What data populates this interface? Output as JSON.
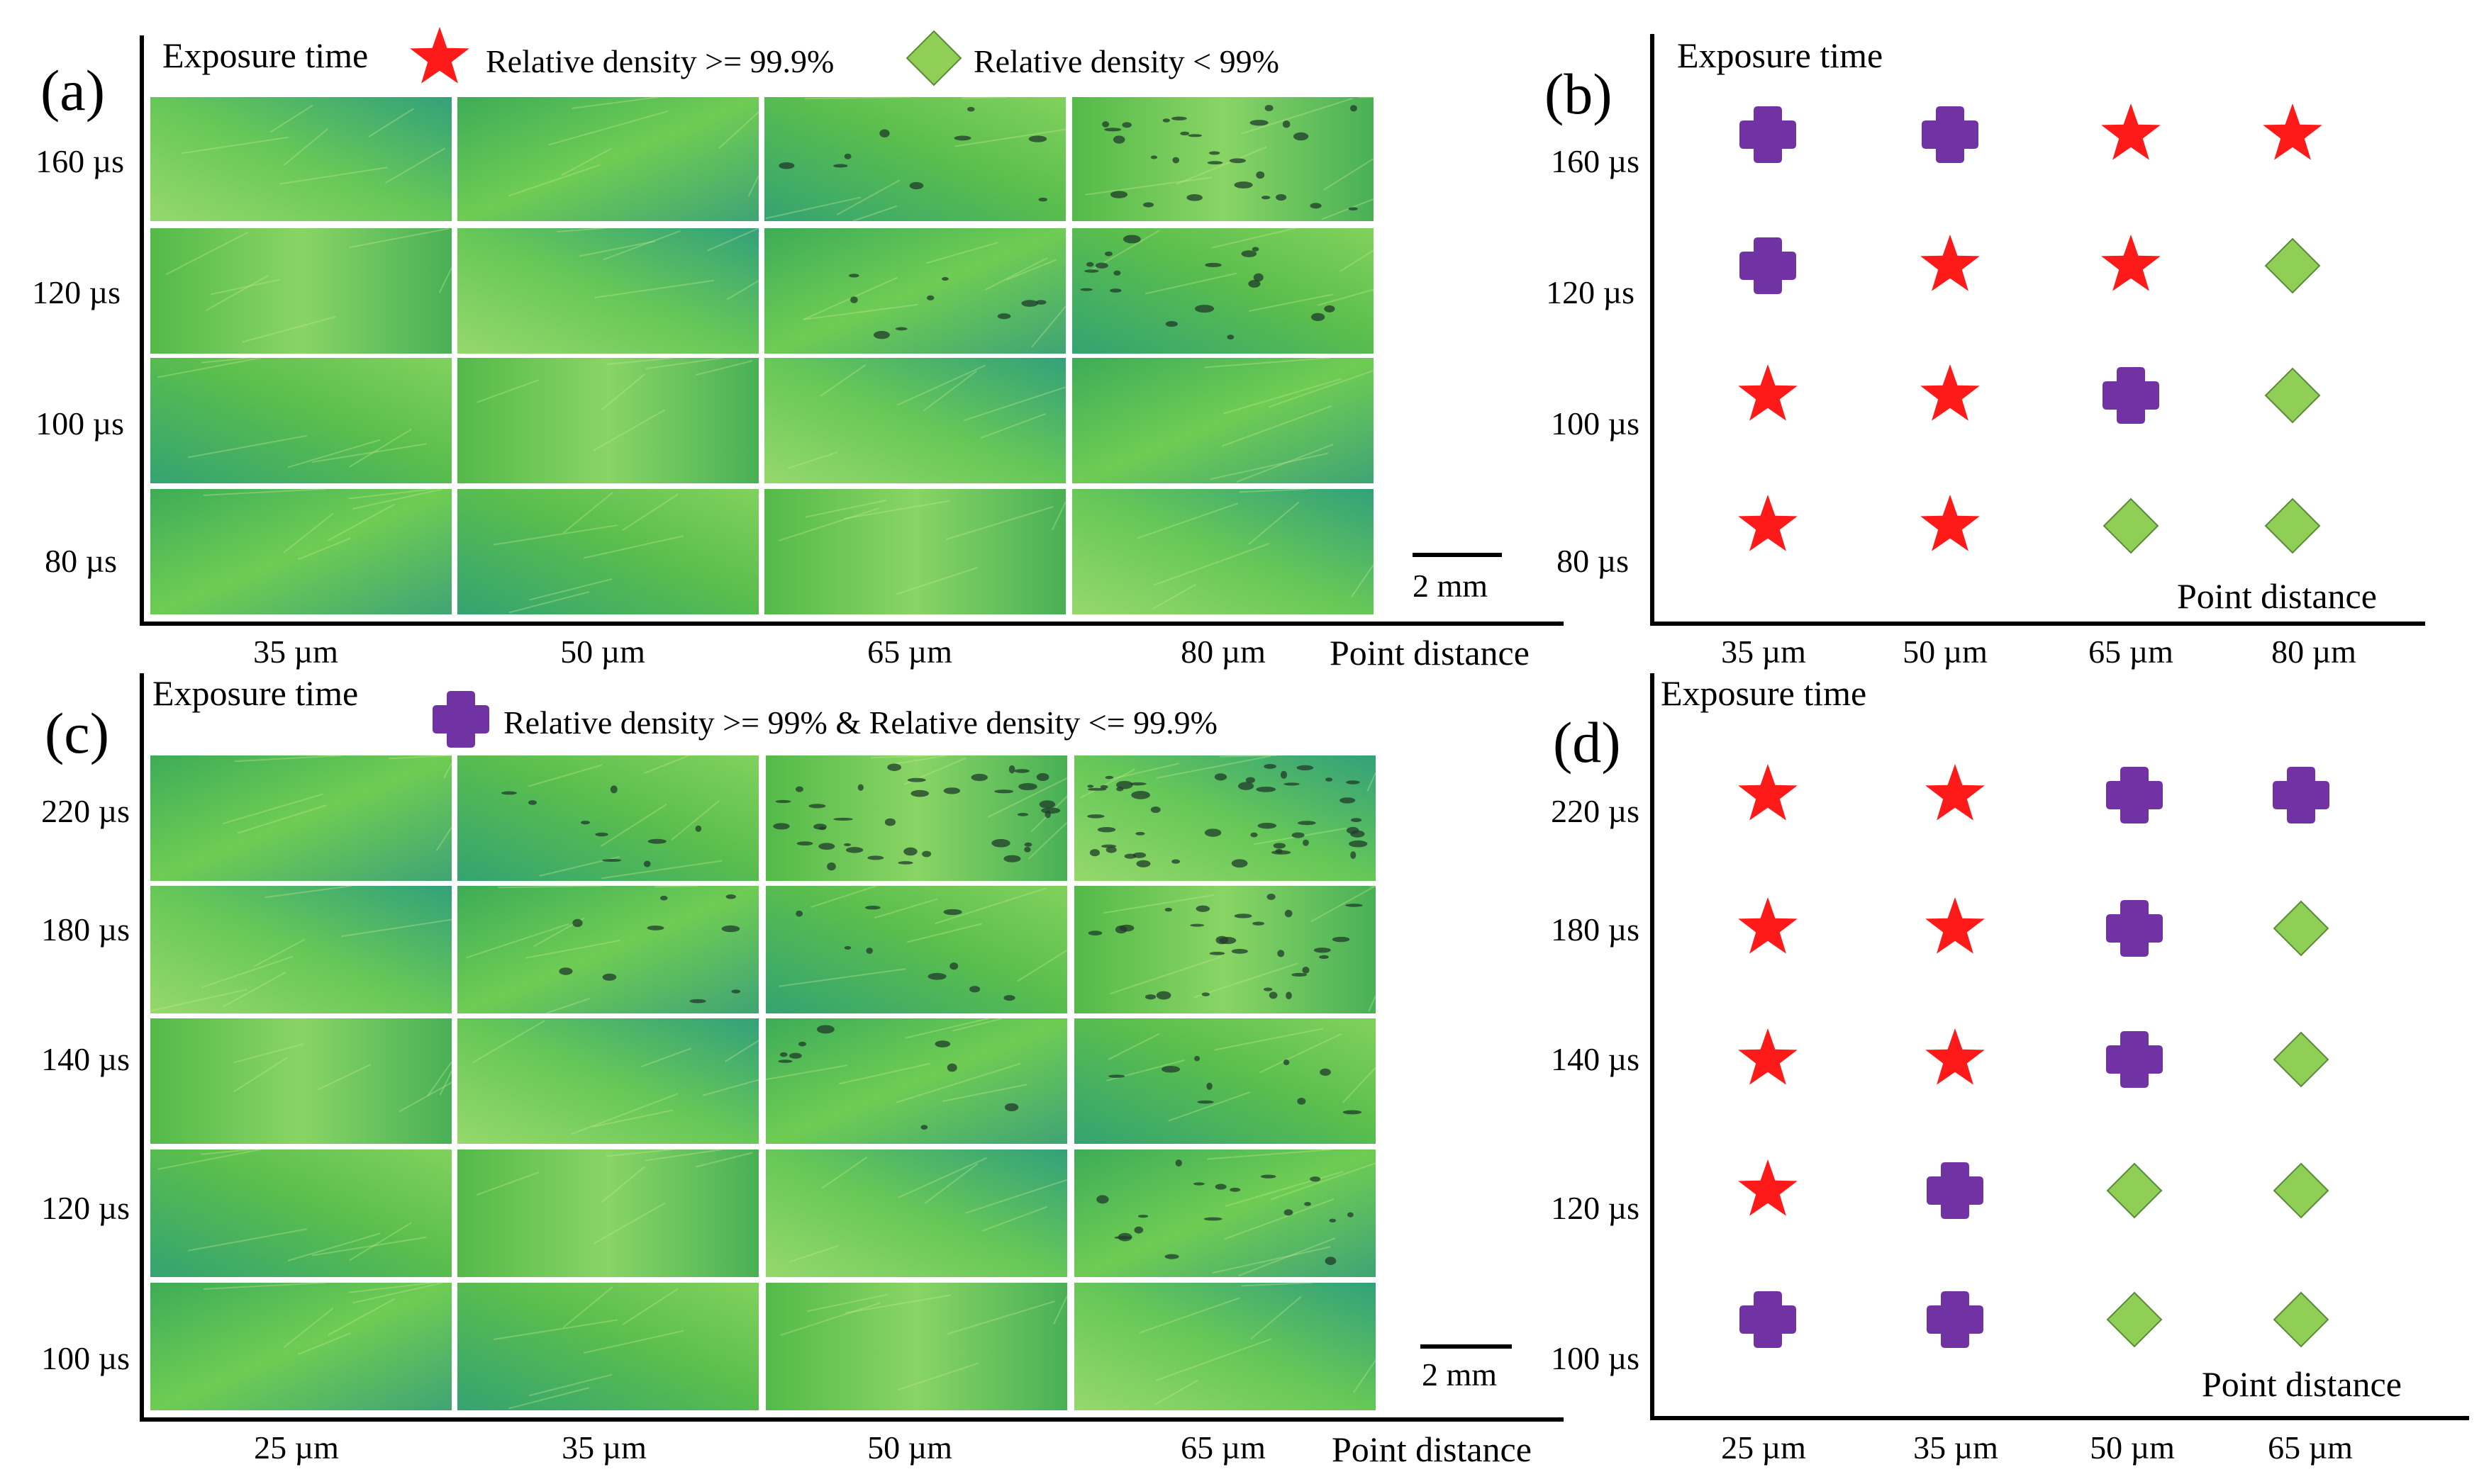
{
  "panels": [
    {
      "id": "a",
      "label": "(a)",
      "kind": "micrograph",
      "y_title": "Exposure time",
      "x_title": "Point distance",
      "y_values": [
        "80 µs",
        "100 µs",
        "120 µs",
        "160 µs"
      ],
      "x_values": [
        "35 µm",
        "50 µm",
        "65 µm",
        "80 µm"
      ],
      "scale_bar": "2 mm",
      "defects": [
        [
          0,
          0,
          0,
          0
        ],
        [
          0,
          0,
          0,
          0
        ],
        [
          0,
          0,
          1,
          2
        ],
        [
          0,
          0,
          1,
          3
        ]
      ]
    },
    {
      "id": "b",
      "label": "(b)",
      "kind": "map",
      "y_title": "Exposure time",
      "x_title": "Point distance",
      "y_values": [
        "80 µs",
        "100 µs",
        "120 µs",
        "160 µs"
      ],
      "x_values": [
        "35 µm",
        "50 µm",
        "65 µm",
        "80 µm"
      ],
      "grid": [
        [
          "cross",
          "cross",
          "star",
          "star"
        ],
        [
          "cross",
          "star",
          "star",
          "diamond"
        ],
        [
          "star",
          "star",
          "cross",
          "diamond"
        ],
        [
          "star",
          "star",
          "diamond",
          "diamond"
        ]
      ]
    },
    {
      "id": "c",
      "label": "(c)",
      "kind": "micrograph",
      "y_title": "Exposure time",
      "x_title": "Point distance",
      "y_values": [
        "100 µs",
        "120 µs",
        "140 µs",
        "180 µs",
        "220 µs"
      ],
      "x_values": [
        "25 µm",
        "35 µm",
        "50 µm",
        "65 µm"
      ],
      "scale_bar": "2 mm",
      "defects": [
        [
          0,
          0,
          0,
          0
        ],
        [
          0,
          0,
          0,
          2
        ],
        [
          0,
          0,
          1,
          1
        ],
        [
          0,
          1,
          1,
          3
        ],
        [
          0,
          1,
          4,
          5
        ]
      ]
    },
    {
      "id": "d",
      "label": "(d)",
      "kind": "map",
      "y_title": "Exposure time",
      "x_title": "Point distance",
      "y_values": [
        "100 µs",
        "120 µs",
        "140 µs",
        "180 µs",
        "220 µs"
      ],
      "x_values": [
        "25 µm",
        "35 µm",
        "50 µm",
        "65 µm"
      ],
      "grid": [
        [
          "star",
          "star",
          "cross",
          "cross"
        ],
        [
          "star",
          "star",
          "cross",
          "diamond"
        ],
        [
          "star",
          "star",
          "cross",
          "diamond"
        ],
        [
          "star",
          "cross",
          "diamond",
          "diamond"
        ],
        [
          "cross",
          "cross",
          "diamond",
          "diamond"
        ]
      ]
    }
  ],
  "legend": {
    "star": "Relative density >= 99.9%",
    "diamond": "Relative density < 99%",
    "cross": "Relative density >= 99% & Relative density <= 99.9%"
  },
  "colors": {
    "star": "#ff1a1a",
    "diamond": "#8fcf55",
    "cross": "#7133a3",
    "tile_base": "#4fbd4a"
  }
}
